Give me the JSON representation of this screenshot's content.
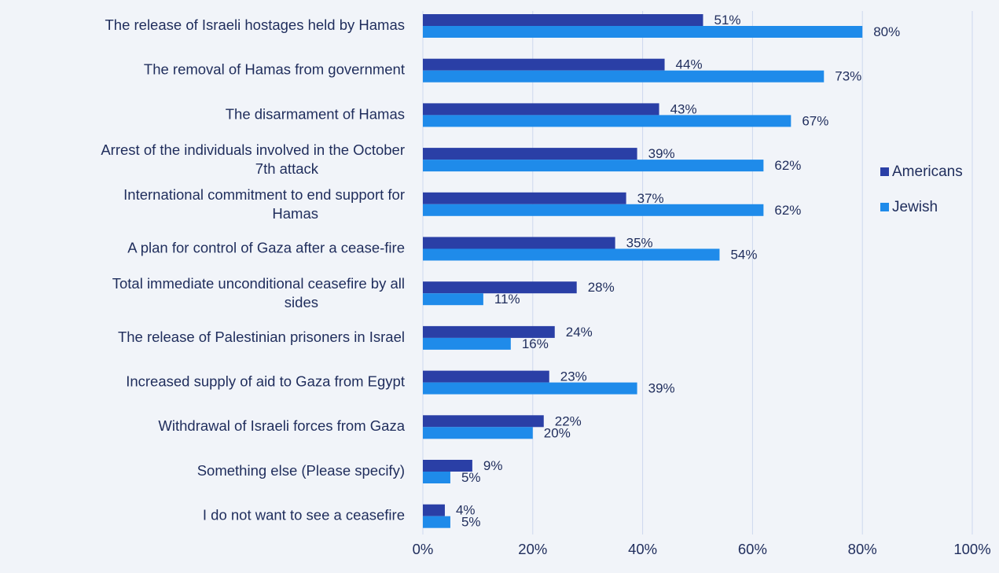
{
  "chart_data": {
    "type": "bar",
    "orientation": "horizontal",
    "title": "",
    "xlabel": "",
    "ylabel": "",
    "xlim": [
      0,
      100
    ],
    "x_ticks": [
      "0%",
      "20%",
      "40%",
      "60%",
      "80%",
      "100%"
    ],
    "grid": "vertical",
    "legend_position": "right",
    "categories": [
      [
        "The release of Israeli hostages held by Hamas"
      ],
      [
        "The removal of Hamas from government"
      ],
      [
        "The disarmament of Hamas"
      ],
      [
        "Arrest of the individuals involved in the October",
        "7th attack"
      ],
      [
        "International commitment to end support for",
        "Hamas"
      ],
      [
        "A plan for control of Gaza after a cease-fire"
      ],
      [
        "Total immediate unconditional ceasefire by all",
        "sides"
      ],
      [
        "The release of Palestinian prisoners in Israel"
      ],
      [
        "Increased supply of aid to Gaza from Egypt"
      ],
      [
        "Withdrawal of Israeli forces from Gaza"
      ],
      [
        "Something else (Please specify)"
      ],
      [
        "I do not want to see a ceasefire"
      ]
    ],
    "series": [
      {
        "name": "Americans",
        "color": "#2a3fa6",
        "values": [
          51,
          44,
          43,
          39,
          37,
          35,
          28,
          24,
          23,
          22,
          9,
          4
        ],
        "labels": [
          "51%",
          "44%",
          "43%",
          "39%",
          "37%",
          "35%",
          "28%",
          "24%",
          "23%",
          "22%",
          "9%",
          "4%"
        ]
      },
      {
        "name": "Jewish",
        "color": "#1f8bea",
        "values": [
          80,
          73,
          67,
          62,
          62,
          54,
          11,
          16,
          39,
          20,
          5,
          5
        ],
        "labels": [
          "80%",
          "73%",
          "67%",
          "62%",
          "62%",
          "54%",
          "11%",
          "16%",
          "39%",
          "20%",
          "5%",
          "5%"
        ]
      }
    ]
  },
  "colors": {
    "background": "#f1f4f9",
    "text": "#1f2d5c",
    "grid": "#cdd8ee"
  }
}
